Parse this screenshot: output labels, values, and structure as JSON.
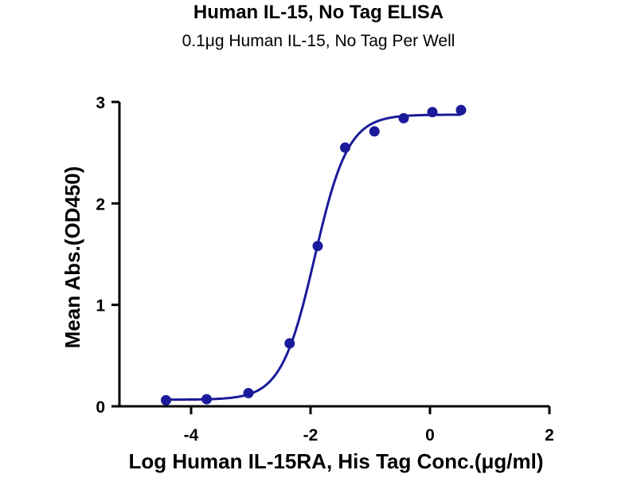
{
  "chart_data": {
    "type": "scatter",
    "title": "Human IL-15, No Tag ELISA",
    "subtitle": "0.1μg Human IL-15, No Tag Per Well",
    "xlabel": "Log Human IL-15RA, His Tag Conc.(μg/ml)",
    "ylabel": "Mean Abs.(OD450)",
    "xlim": [
      -5.2,
      2
    ],
    "ylim": [
      0,
      3
    ],
    "x_ticks": [
      -4,
      -2,
      0,
      2
    ],
    "y_ticks": [
      0,
      1,
      2,
      3
    ],
    "x_tick_labels": [
      "-4",
      "-2",
      "0",
      "2"
    ],
    "y_tick_labels": [
      "0",
      "1",
      "2",
      "3"
    ],
    "series": [
      {
        "color": "#1a1a9a",
        "points": [
          {
            "x": -4.42,
            "y": 0.06
          },
          {
            "x": -3.74,
            "y": 0.07
          },
          {
            "x": -3.04,
            "y": 0.13
          },
          {
            "x": -2.35,
            "y": 0.62
          },
          {
            "x": -1.88,
            "y": 1.58
          },
          {
            "x": -1.42,
            "y": 2.55
          },
          {
            "x": -0.93,
            "y": 2.71
          },
          {
            "x": -0.44,
            "y": 2.84
          },
          {
            "x": 0.04,
            "y": 2.9
          },
          {
            "x": 0.52,
            "y": 2.92
          }
        ],
        "fit": {
          "model": "4PL",
          "bottom": 0.065,
          "top": 2.875,
          "logEC50": -1.93,
          "hill": 1.55,
          "x_range": [
            -4.42,
            0.52
          ]
        }
      }
    ],
    "grid": false,
    "legend": "none"
  }
}
